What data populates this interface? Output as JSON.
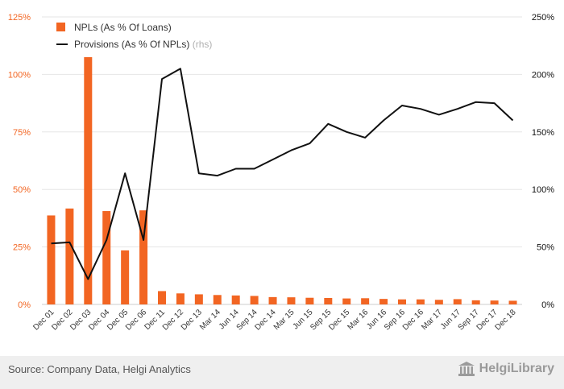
{
  "chart_data": {
    "type": "bar+line",
    "categories": [
      "Dec 01",
      "Dec 02",
      "Dec 03",
      "Dec 04",
      "Dec 05",
      "Dec 06",
      "Dec 11",
      "Dec 12",
      "Dec 13",
      "Mar 14",
      "Jun 14",
      "Sep 14",
      "Dec 14",
      "Mar 15",
      "Jun 15",
      "Sep 15",
      "Dec 15",
      "Mar 16",
      "Jun 16",
      "Sep 16",
      "Dec 16",
      "Mar 17",
      "Jun 17",
      "Sep 17",
      "Dec 17",
      "Dec 18"
    ],
    "series": [
      {
        "name": "NPLs (As % Of Loans)",
        "type": "bar",
        "axis": "left",
        "color": "#f26522",
        "values": [
          38.7,
          41.7,
          107.5,
          40.6,
          23.5,
          40.9,
          5.8,
          4.8,
          4.4,
          4.1,
          3.9,
          3.7,
          3.2,
          3.1,
          2.9,
          2.8,
          2.6,
          2.7,
          2.4,
          2.2,
          2.2,
          2.0,
          2.3,
          1.8,
          1.7,
          1.6
        ]
      },
      {
        "name": "Provisions (As % Of NPLs)",
        "name_suffix": " (rhs)",
        "type": "line",
        "axis": "right",
        "color": "#111111",
        "values": [
          53,
          54,
          22,
          56,
          114,
          56,
          196,
          205,
          114,
          112,
          118,
          118,
          126,
          134,
          140,
          157,
          150,
          145,
          160,
          173,
          170,
          165,
          170,
          176,
          175,
          160
        ]
      }
    ],
    "y_left": {
      "min": 0,
      "max": 125,
      "ticks": [
        "0%",
        "25%",
        "50%",
        "75%",
        "100%",
        "125%"
      ]
    },
    "y_right": {
      "min": 0,
      "max": 250,
      "ticks": [
        "0%",
        "50%",
        "100%",
        "150%",
        "200%",
        "250%"
      ]
    },
    "grid": true,
    "legend_position": "top-left"
  },
  "footer": {
    "source": "Source: Company Data, Helgi Analytics",
    "brand": "HelgiLibrary"
  }
}
